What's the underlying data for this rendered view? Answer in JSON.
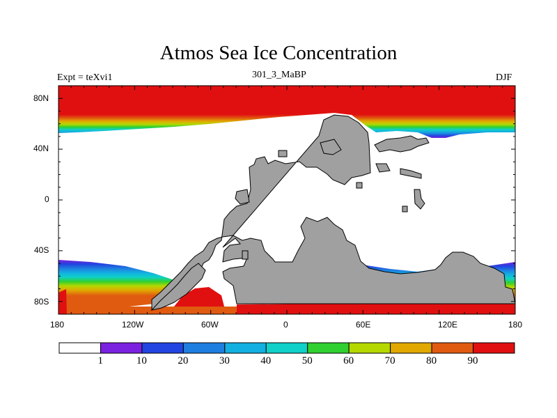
{
  "title": "Atmos Sea Ice Concentration",
  "left_label": "Expt = teXvi1",
  "center_label": "301_3_MaBP",
  "right_label": "DJF",
  "lat_ticks": [
    "80N",
    "40N",
    "0",
    "40S",
    "80S"
  ],
  "lon_ticks": [
    "180",
    "120W",
    "60W",
    "0",
    "60E",
    "120E",
    "180"
  ],
  "colorbar": {
    "colors": [
      "#ffffff",
      "#7a22e0",
      "#2244e0",
      "#1f7fe0",
      "#12b0e0",
      "#10d0c8",
      "#30d030",
      "#b4d800",
      "#e0a800",
      "#e05a10",
      "#e01010"
    ],
    "labels": [
      "1",
      "10",
      "20",
      "30",
      "40",
      "50",
      "60",
      "70",
      "80",
      "90"
    ]
  },
  "colors": {
    "land": "#a0a0a0",
    "ice_full": "#e01010"
  }
}
